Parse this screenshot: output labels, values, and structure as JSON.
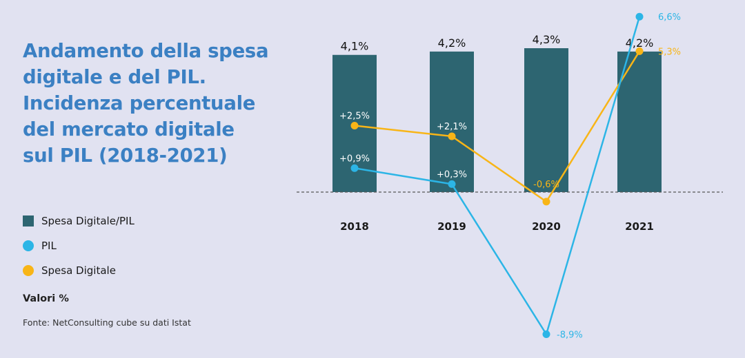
{
  "title": "Andamento della spesa\ndigitale e del PIL.\nIncidenza percentuale\ndel mercato digitale\nsul PIL (2018-2021)",
  "units_note": "Valori %",
  "source": "Fonte: NetConsulting cube su dati Istat",
  "colors": {
    "background": "#e1e2f1",
    "title": "#3b80c3",
    "bar": "#2d6571",
    "pil": "#2cb5e6",
    "spesa": "#f8b517"
  },
  "chart_data": {
    "type": "bar+line",
    "categories": [
      "2018",
      "2019",
      "2020",
      "2021"
    ],
    "series": [
      {
        "name": "Spesa Digitale/PIL",
        "type": "bar",
        "values": [
          4.1,
          4.2,
          4.3,
          4.2
        ],
        "labels": [
          "4,1%",
          "4,2%",
          "4,3%",
          "4,2%"
        ],
        "color": "#2d6571"
      },
      {
        "name": "PIL",
        "type": "line",
        "values": [
          0.9,
          0.3,
          -8.9,
          6.6
        ],
        "labels": [
          "+0,9%",
          "+0,3%",
          "-8,9%",
          "6,6%"
        ],
        "color": "#2cb5e6"
      },
      {
        "name": "Spesa Digitale",
        "type": "line",
        "values": [
          2.5,
          2.1,
          -0.6,
          5.3
        ],
        "labels": [
          "+2,5%",
          "+2,1%",
          "-0,6%",
          "5,3%"
        ],
        "color": "#f8b517"
      }
    ],
    "baseline": 0,
    "legend_position": "left",
    "grid": false
  }
}
